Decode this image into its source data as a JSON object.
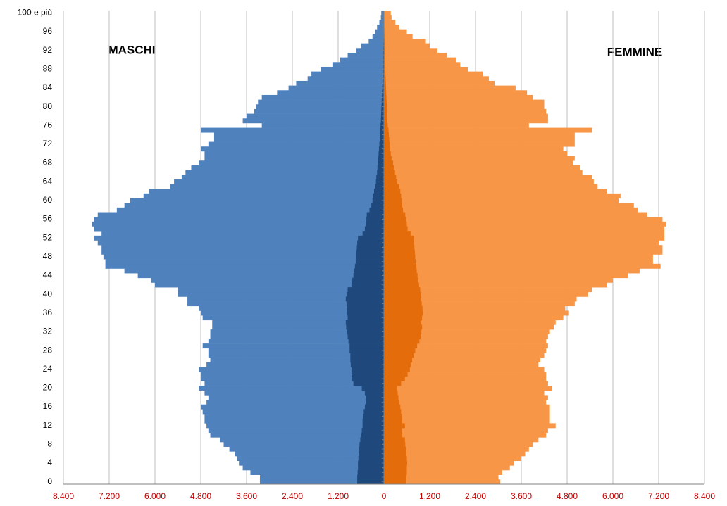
{
  "chart_data": {
    "type": "pyramid",
    "annotations": [
      "MASCHI",
      "FEMMINE"
    ],
    "categories": [
      "0",
      null,
      null,
      null,
      "4",
      null,
      null,
      null,
      "8",
      null,
      null,
      null,
      "12",
      null,
      null,
      null,
      "16",
      null,
      null,
      null,
      "20",
      null,
      null,
      null,
      "24",
      null,
      null,
      null,
      "28",
      null,
      null,
      null,
      "32",
      null,
      null,
      null,
      "36",
      null,
      null,
      null,
      "40",
      null,
      null,
      null,
      "44",
      null,
      null,
      null,
      "48",
      null,
      null,
      null,
      "52",
      null,
      null,
      null,
      "56",
      null,
      null,
      null,
      "60",
      null,
      null,
      null,
      "64",
      null,
      null,
      null,
      "68",
      null,
      null,
      null,
      "72",
      null,
      null,
      null,
      "76",
      null,
      null,
      null,
      "80",
      null,
      null,
      null,
      "84",
      null,
      null,
      null,
      "88",
      null,
      null,
      null,
      "92",
      null,
      null,
      null,
      "96",
      null,
      null,
      null,
      "100 e più"
    ],
    "series": [
      {
        "color": "#4f81bd",
        "values": [
          -3250,
          -3250,
          -3500,
          -3700,
          -3800,
          -3850,
          -3900,
          -4050,
          -4200,
          -4300,
          -4550,
          -4600,
          -4650,
          -4700,
          -4700,
          -4750,
          -4800,
          -4650,
          -4600,
          -4700,
          -4850,
          -4700,
          -4800,
          -4800,
          -4850,
          -4650,
          -4550,
          -4600,
          -4600,
          -4750,
          -4600,
          -4550,
          -4550,
          -4500,
          -4500,
          -4750,
          -4800,
          -4850,
          -5150,
          -5150,
          -5400,
          -5400,
          -6000,
          -6100,
          -6450,
          -6800,
          -7300,
          -7300,
          -7350,
          -7400,
          -7400,
          -7500,
          -7600,
          -7400,
          -7600,
          -7650,
          -7600,
          -7500,
          -7000,
          -6800,
          -6650,
          -6300,
          -6150,
          -5600,
          -5500,
          -5300,
          -5200,
          -5050,
          -4850,
          -4700,
          -4700,
          -4800,
          -4600,
          -4450,
          -4450,
          -4800,
          -3200,
          -3700,
          -3600,
          -3400,
          -3350,
          -3300,
          -3200,
          -2800,
          -2500,
          -2300,
          -2000,
          -1900,
          -1650,
          -1350,
          -1150,
          -950,
          -720,
          -600,
          -400,
          -300,
          -230,
          -180,
          -120,
          -80,
          -70
        ]
      },
      {
        "color": "#1f497d",
        "values": [
          -700,
          -700,
          -690,
          -680,
          -680,
          -670,
          -660,
          -650,
          -640,
          -620,
          -600,
          -580,
          -560,
          -560,
          -550,
          -530,
          -500,
          -480,
          -470,
          -500,
          -580,
          -800,
          -830,
          -850,
          -850,
          -870,
          -880,
          -880,
          -900,
          -900,
          -930,
          -950,
          -960,
          -990,
          -1000,
          -950,
          -960,
          -970,
          -980,
          -1000,
          -980,
          -950,
          -850,
          -830,
          -800,
          -780,
          -760,
          -740,
          -720,
          -720,
          -710,
          -700,
          -680,
          -560,
          -500,
          -480,
          -460,
          -450,
          -380,
          -330,
          -300,
          -280,
          -260,
          -240,
          -210,
          -200,
          -180,
          -170,
          -160,
          -150,
          -140,
          -130,
          -120,
          -110,
          -100,
          -100,
          -90,
          -80,
          -75,
          -70,
          -65,
          -60,
          -55,
          -50,
          -45,
          -40,
          -35,
          -30,
          -28,
          -25,
          -22,
          -20,
          -18,
          -15,
          -12,
          -10,
          -8,
          -6,
          -5,
          -4,
          -3
        ]
      },
      {
        "color": "#f79646",
        "values": [
          3050,
          3000,
          3100,
          3300,
          3400,
          3600,
          3700,
          3800,
          3900,
          4050,
          4250,
          4300,
          4500,
          4350,
          4350,
          4350,
          4350,
          4250,
          4300,
          4200,
          4400,
          4300,
          4250,
          4250,
          4200,
          4050,
          4100,
          4200,
          4250,
          4300,
          4250,
          4300,
          4350,
          4450,
          4500,
          4700,
          4850,
          4750,
          5000,
          5050,
          5350,
          5450,
          5850,
          6000,
          6400,
          6700,
          7250,
          7050,
          7050,
          7300,
          7300,
          7200,
          7350,
          7350,
          7350,
          7400,
          7300,
          6900,
          6650,
          6550,
          6150,
          6200,
          5850,
          5600,
          5500,
          5450,
          5200,
          5150,
          4950,
          5000,
          4800,
          4700,
          5000,
          5000,
          5000,
          5450,
          3800,
          4300,
          4300,
          4250,
          4200,
          4200,
          3900,
          3750,
          3450,
          2900,
          2750,
          2600,
          2200,
          2000,
          1900,
          1650,
          1400,
          1200,
          1100,
          750,
          600,
          400,
          300,
          200,
          180
        ]
      },
      {
        "color": "#e46c0a",
        "values": [
          580,
          590,
          600,
          600,
          610,
          600,
          590,
          580,
          560,
          550,
          480,
          470,
          550,
          480,
          470,
          450,
          430,
          400,
          380,
          360,
          350,
          450,
          550,
          620,
          680,
          700,
          740,
          780,
          820,
          870,
          930,
          960,
          980,
          1000,
          980,
          1000,
          1020,
          1010,
          990,
          980,
          970,
          950,
          920,
          900,
          880,
          860,
          850,
          830,
          820,
          810,
          800,
          790,
          780,
          700,
          620,
          600,
          580,
          560,
          500,
          480,
          470,
          450,
          430,
          400,
          350,
          320,
          290,
          260,
          240,
          200,
          180,
          160,
          150,
          140,
          130,
          120,
          100,
          90,
          85,
          80,
          75,
          70,
          65,
          60,
          55,
          50,
          45,
          40,
          35,
          30,
          28,
          25,
          22,
          20,
          18,
          15,
          12,
          10,
          8,
          6,
          5
        ]
      }
    ],
    "xlim": [
      -8400,
      8400
    ],
    "xticks": [
      {
        "value": -8400,
        "label": "8.400"
      },
      {
        "value": -7200,
        "label": "7.200"
      },
      {
        "value": -6000,
        "label": "6.000"
      },
      {
        "value": -4800,
        "label": "4.800"
      },
      {
        "value": -3600,
        "label": "3.600"
      },
      {
        "value": -2400,
        "label": "2.400"
      },
      {
        "value": -1200,
        "label": "1.200"
      },
      0,
      {
        "value": 1200,
        "label": "1.200"
      },
      {
        "value": 2400,
        "label": "2.400"
      },
      {
        "value": 3600,
        "label": "3.600"
      },
      {
        "value": 4800,
        "label": "4.800"
      },
      {
        "value": 6000,
        "label": "6.000"
      },
      {
        "value": 7200,
        "label": "7.200"
      },
      {
        "value": 8400,
        "label": "8.400"
      }
    ],
    "grid": true
  }
}
